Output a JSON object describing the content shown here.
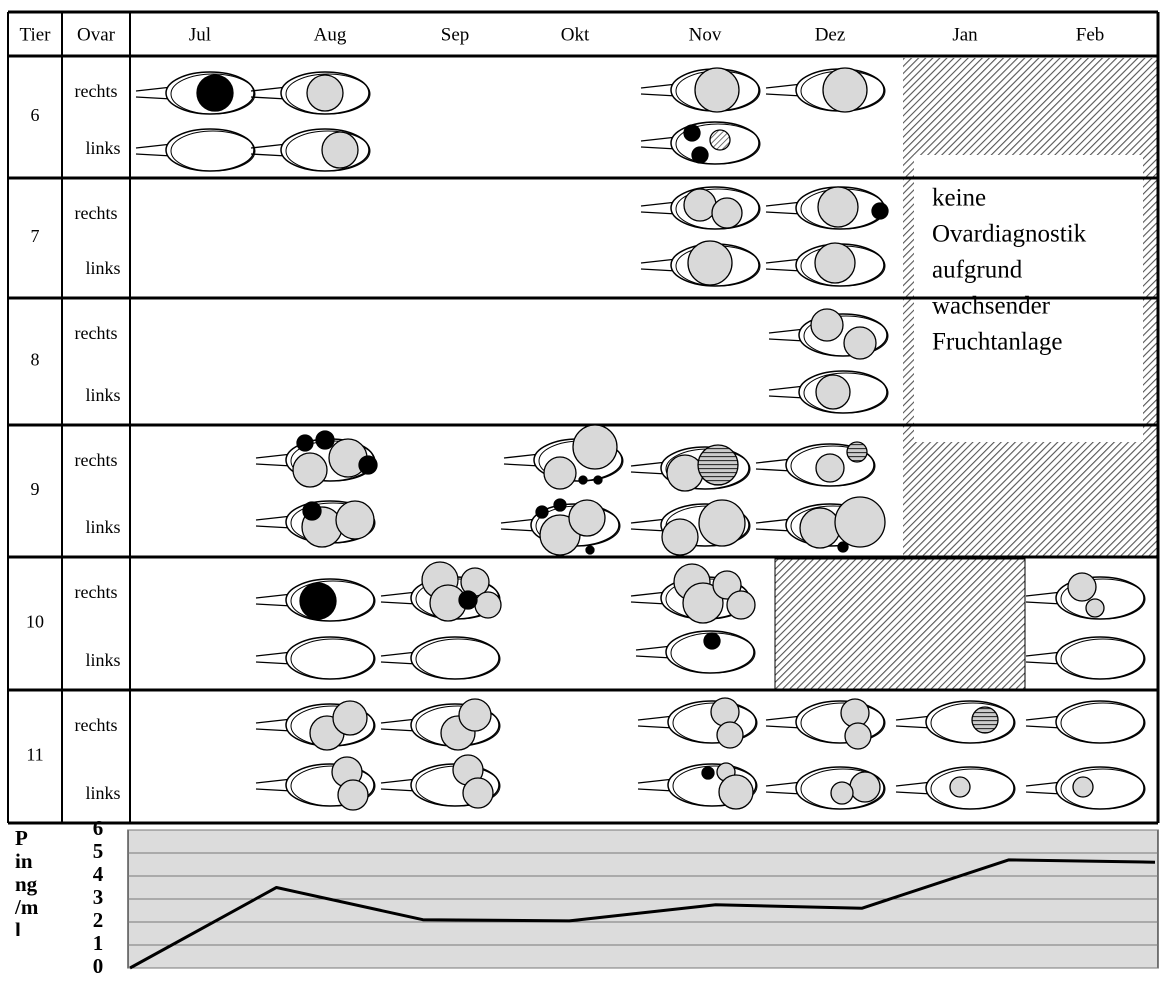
{
  "table": {
    "headers": [
      "Tier",
      "Ovar",
      "Jul",
      "Aug",
      "Sep",
      "Okt",
      "Nov",
      "Dez",
      "Jan",
      "Feb"
    ],
    "rows": [
      {
        "tier": "6",
        "ovar": [
          "rechts",
          "links"
        ]
      },
      {
        "tier": "7",
        "ovar": [
          "rechts",
          "links"
        ]
      },
      {
        "tier": "8",
        "ovar": [
          "rechts",
          "links"
        ]
      },
      {
        "tier": "9",
        "ovar": [
          "rechts",
          "links"
        ]
      },
      {
        "tier": "10",
        "ovar": [
          "rechts",
          "links"
        ]
      },
      {
        "tier": "11",
        "ovar": [
          "rechts",
          "links"
        ]
      }
    ]
  },
  "note": [
    "keine",
    "Ovardiagnostik",
    "aufgrund",
    "wachsender",
    "Fruchtanlage"
  ],
  "chart_data": {
    "type": "line",
    "ylabel": [
      "P",
      "in",
      "ng",
      "/m",
      "l"
    ],
    "categories": [
      null,
      null,
      null,
      null,
      null,
      null,
      null,
      null
    ],
    "values": [
      0,
      3.5,
      2.1,
      2.05,
      2.75,
      2.6,
      4.7,
      4.6
    ],
    "color": "#000000",
    "ylim": [
      0,
      6
    ],
    "yticks": [
      0,
      1,
      2,
      3,
      4,
      5,
      6
    ],
    "grid": true
  }
}
